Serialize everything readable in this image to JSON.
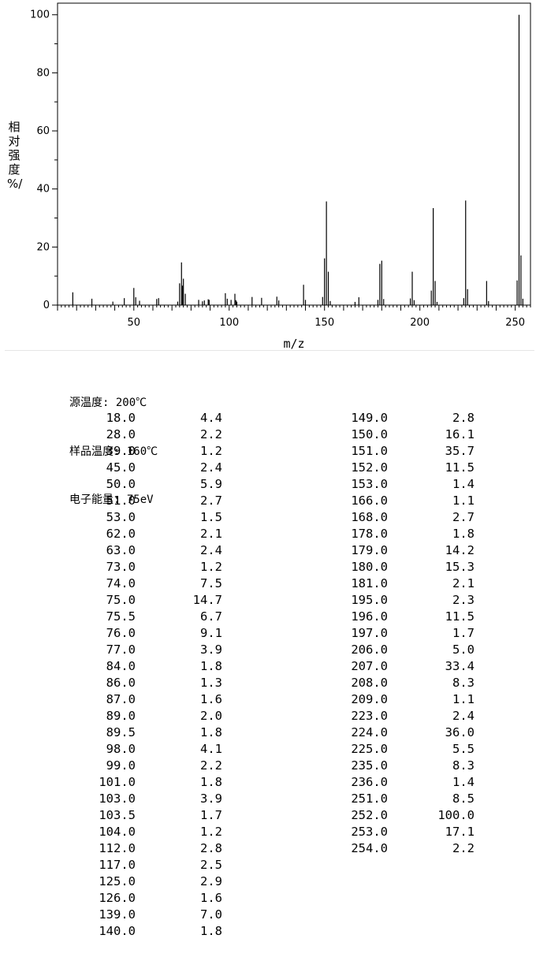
{
  "chart_data": {
    "type": "bar",
    "xlabel": "m/z",
    "ylabel_chars": [
      "相",
      "对",
      "强",
      "度",
      "%/"
    ],
    "xlim": [
      10,
      258
    ],
    "ylim": [
      0,
      104
    ],
    "xticks": [
      50,
      100,
      150,
      200,
      250
    ],
    "yticks": [
      0,
      20,
      40,
      60,
      80,
      100
    ],
    "peaks": [
      {
        "mz": "18.0",
        "int": "4.4"
      },
      {
        "mz": "28.0",
        "int": "2.2"
      },
      {
        "mz": "39.0",
        "int": "1.2"
      },
      {
        "mz": "45.0",
        "int": "2.4"
      },
      {
        "mz": "50.0",
        "int": "5.9"
      },
      {
        "mz": "51.0",
        "int": "2.7"
      },
      {
        "mz": "53.0",
        "int": "1.5"
      },
      {
        "mz": "62.0",
        "int": "2.1"
      },
      {
        "mz": "63.0",
        "int": "2.4"
      },
      {
        "mz": "73.0",
        "int": "1.2"
      },
      {
        "mz": "74.0",
        "int": "7.5"
      },
      {
        "mz": "75.0",
        "int": "14.7"
      },
      {
        "mz": "75.5",
        "int": "6.7"
      },
      {
        "mz": "76.0",
        "int": "9.1"
      },
      {
        "mz": "77.0",
        "int": "3.9"
      },
      {
        "mz": "84.0",
        "int": "1.8"
      },
      {
        "mz": "86.0",
        "int": "1.3"
      },
      {
        "mz": "87.0",
        "int": "1.6"
      },
      {
        "mz": "89.0",
        "int": "2.0"
      },
      {
        "mz": "89.5",
        "int": "1.8"
      },
      {
        "mz": "98.0",
        "int": "4.1"
      },
      {
        "mz": "99.0",
        "int": "2.2"
      },
      {
        "mz": "101.0",
        "int": "1.8"
      },
      {
        "mz": "103.0",
        "int": "3.9"
      },
      {
        "mz": "103.5",
        "int": "1.7"
      },
      {
        "mz": "104.0",
        "int": "1.2"
      },
      {
        "mz": "112.0",
        "int": "2.8"
      },
      {
        "mz": "117.0",
        "int": "2.5"
      },
      {
        "mz": "125.0",
        "int": "2.9"
      },
      {
        "mz": "126.0",
        "int": "1.6"
      },
      {
        "mz": "139.0",
        "int": "7.0"
      },
      {
        "mz": "140.0",
        "int": "1.8"
      },
      {
        "mz": "149.0",
        "int": "2.8"
      },
      {
        "mz": "150.0",
        "int": "16.1"
      },
      {
        "mz": "151.0",
        "int": "35.7"
      },
      {
        "mz": "152.0",
        "int": "11.5"
      },
      {
        "mz": "153.0",
        "int": "1.4"
      },
      {
        "mz": "166.0",
        "int": "1.1"
      },
      {
        "mz": "168.0",
        "int": "2.7"
      },
      {
        "mz": "178.0",
        "int": "1.8"
      },
      {
        "mz": "179.0",
        "int": "14.2"
      },
      {
        "mz": "180.0",
        "int": "15.3"
      },
      {
        "mz": "181.0",
        "int": "2.1"
      },
      {
        "mz": "195.0",
        "int": "2.3"
      },
      {
        "mz": "196.0",
        "int": "11.5"
      },
      {
        "mz": "197.0",
        "int": "1.7"
      },
      {
        "mz": "206.0",
        "int": "5.0"
      },
      {
        "mz": "207.0",
        "int": "33.4"
      },
      {
        "mz": "208.0",
        "int": "8.3"
      },
      {
        "mz": "209.0",
        "int": "1.1"
      },
      {
        "mz": "223.0",
        "int": "2.4"
      },
      {
        "mz": "224.0",
        "int": "36.0"
      },
      {
        "mz": "225.0",
        "int": "5.5"
      },
      {
        "mz": "235.0",
        "int": "8.3"
      },
      {
        "mz": "236.0",
        "int": "1.4"
      },
      {
        "mz": "251.0",
        "int": "8.5"
      },
      {
        "mz": "252.0",
        "int": "100.0"
      },
      {
        "mz": "253.0",
        "int": "17.1"
      },
      {
        "mz": "254.0",
        "int": "2.2"
      }
    ]
  },
  "conditions": {
    "source_temp": "源温度: 200℃",
    "sample_temp": "样品温度: 160℃",
    "electron_energy": "电子能量: 75eV"
  }
}
